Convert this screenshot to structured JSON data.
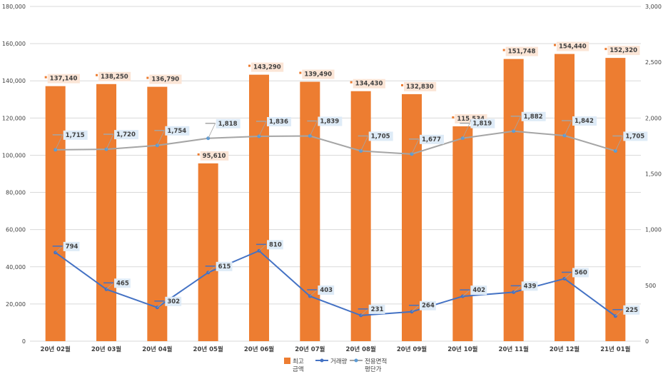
{
  "chart_data": {
    "type": "bar",
    "categories": [
      "20년 02월",
      "20년 03월",
      "20년 04월",
      "20년 05월",
      "20년 06월",
      "20년 07월",
      "20년 08월",
      "20년 09월",
      "20년 10월",
      "20년 11월",
      "20년 12월",
      "21년 01월"
    ],
    "y_left": {
      "ticks": [
        "0",
        "20,000",
        "40,000",
        "60,000",
        "80,000",
        "100,000",
        "120,000",
        "140,000",
        "160,000",
        "180,000"
      ],
      "ylim": [
        0,
        180000
      ]
    },
    "y_right": {
      "ticks": [
        "0",
        "500",
        "1,000",
        "1,500",
        "2,000",
        "2,500",
        "3,000"
      ],
      "ylim": [
        0,
        3000
      ]
    },
    "grid": true,
    "legend_position": "bottom",
    "series": [
      {
        "name": "최고\n금액",
        "kind": "bar",
        "axis": "left",
        "color": "#ED7D31",
        "values": [
          137140,
          138250,
          136790,
          95610,
          143290,
          139490,
          134430,
          132830,
          115534,
          151748,
          154440,
          152320
        ],
        "labels": [
          "137,140",
          "138,250",
          "136,790",
          "95,610",
          "143,290",
          "139,490",
          "134,430",
          "132,830",
          "115,534",
          "151,748",
          "154,440",
          "152,320"
        ]
      },
      {
        "name": "거래량",
        "kind": "line",
        "axis": "right",
        "color": "#4472C4",
        "values": [
          794,
          465,
          302,
          615,
          810,
          403,
          231,
          264,
          402,
          439,
          560,
          225
        ],
        "labels": [
          "794",
          "465",
          "302",
          "615",
          "810",
          "403",
          "231",
          "264",
          "402",
          "439",
          "560",
          "225"
        ]
      },
      {
        "name": "전용면적\n평단가",
        "kind": "line",
        "axis": "right",
        "color": "#A5A5A5",
        "values": [
          1715,
          1720,
          1754,
          1818,
          1836,
          1839,
          1705,
          1677,
          1819,
          1882,
          1842,
          1705
        ],
        "labels": [
          "1,715",
          "1,720",
          "1,754",
          "1,818",
          "1,836",
          "1,839",
          "1,705",
          "1,677",
          "1,819",
          "1,882",
          "1,842",
          "1,705"
        ]
      }
    ]
  }
}
